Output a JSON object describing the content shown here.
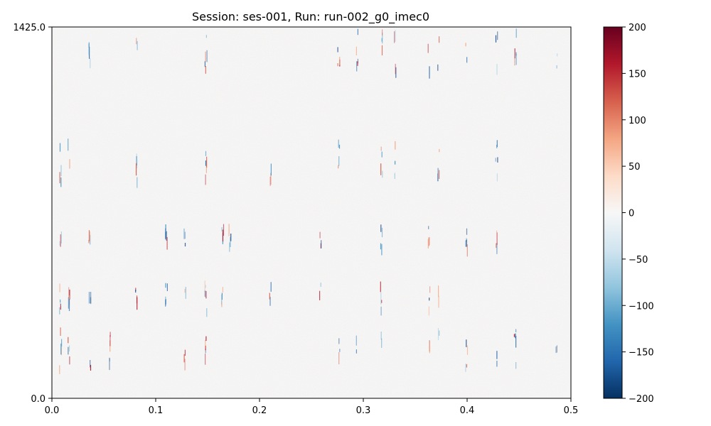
{
  "chart_data": {
    "type": "heatmap",
    "title": "Session: ses-001, Run: run-002_g0_imec0",
    "xlabel": "",
    "ylabel": "",
    "xlim": [
      0.0,
      0.5
    ],
    "ylim": [
      0.0,
      1425.0
    ],
    "x_ticks": [
      "0.0",
      "0.1",
      "0.2",
      "0.3",
      "0.4",
      "0.5"
    ],
    "x_tick_values": [
      0.0,
      0.1,
      0.2,
      0.3,
      0.4,
      0.5
    ],
    "y_ticks": [
      "0.0",
      "1425.0"
    ],
    "y_tick_values": [
      0.0,
      1425.0
    ],
    "colormap": "RdBu_r",
    "color_limits": [
      -200,
      200
    ],
    "colorbar_ticks": [
      "−200",
      "−150",
      "−100",
      "−50",
      "0",
      "50",
      "100",
      "150",
      "200"
    ],
    "colorbar_tick_values": [
      -200,
      -150,
      -100,
      -50,
      0,
      50,
      100,
      150,
      200
    ],
    "grid": false,
    "spike_events_x": [
      0.008,
      0.016,
      0.036,
      0.055,
      0.081,
      0.11,
      0.128,
      0.148,
      0.164,
      0.171,
      0.21,
      0.258,
      0.276,
      0.294,
      0.317,
      0.33,
      0.363,
      0.372,
      0.399,
      0.428,
      0.446,
      0.486
    ]
  }
}
